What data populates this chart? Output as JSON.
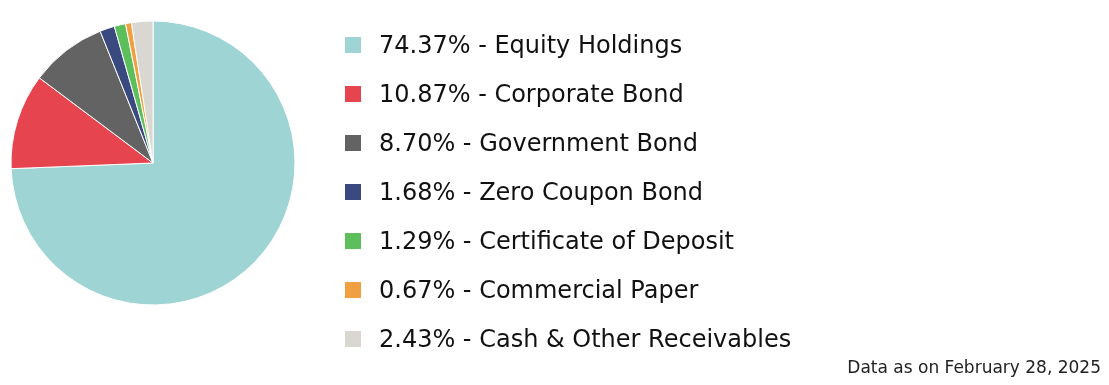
{
  "chart_data": {
    "type": "pie",
    "categories": [
      "74.37% - Equity Holdings",
      "10.87% - Corporate Bond",
      "8.70% - Government Bond",
      "1.68% - Zero Coupon Bond",
      "1.29% - Certificate of Deposit",
      "0.67% - Commercial Paper",
      "2.43% - Cash & Other Receivables"
    ],
    "values": [
      74.37,
      10.87,
      8.7,
      1.68,
      1.29,
      0.67,
      2.43
    ],
    "colors": [
      "#9fd4d4",
      "#e64550",
      "#636363",
      "#3a4a80",
      "#5cbf5c",
      "#f0a040",
      "#dad6d2"
    ],
    "legend": "right",
    "annotations": [
      "Data as on February 28, 2025"
    ]
  }
}
